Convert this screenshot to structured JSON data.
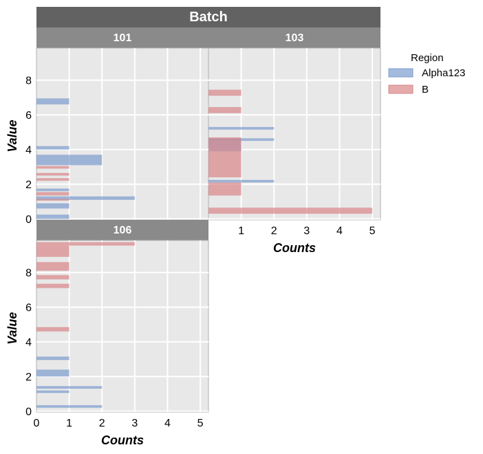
{
  "chart_data": {
    "type": "bar",
    "orientation": "horizontal",
    "facet_title": "Batch",
    "xlabel": "Counts",
    "ylabel": "Value",
    "xlim": [
      0,
      5.25
    ],
    "ylim": [
      -0.05,
      9.85
    ],
    "x_ticks": [
      0,
      1,
      2,
      3,
      4,
      5
    ],
    "y_ticks": [
      0,
      2,
      4,
      6,
      8
    ],
    "grid": true,
    "legend": {
      "title": "Region",
      "placement": "right",
      "entries": [
        {
          "name": "Alpha123",
          "color": "#7e9cce"
        },
        {
          "name": "B",
          "color": "#d98689"
        }
      ]
    },
    "panels": [
      {
        "label": "101",
        "bars": [
          {
            "region": "Alpha123",
            "y0": 6.6,
            "y1": 6.95,
            "count": 1
          },
          {
            "region": "Alpha123",
            "y0": 4.0,
            "y1": 4.2,
            "count": 1
          },
          {
            "region": "Alpha123",
            "y0": 3.1,
            "y1": 3.7,
            "count": 2
          },
          {
            "region": "B",
            "y0": 2.9,
            "y1": 3.05,
            "count": 1
          },
          {
            "region": "B",
            "y0": 2.5,
            "y1": 2.65,
            "count": 1
          },
          {
            "region": "B",
            "y0": 2.2,
            "y1": 2.35,
            "count": 1
          },
          {
            "region": "Alpha123",
            "y0": 1.6,
            "y1": 1.75,
            "count": 1
          },
          {
            "region": "B",
            "y0": 1.35,
            "y1": 1.55,
            "count": 1
          },
          {
            "region": "Alpha123",
            "y0": 1.1,
            "y1": 1.3,
            "count": 3
          },
          {
            "region": "B",
            "y0": 1.05,
            "y1": 1.15,
            "count": 1
          },
          {
            "region": "Alpha123",
            "y0": 0.6,
            "y1": 0.9,
            "count": 1
          },
          {
            "region": "Alpha123",
            "y0": 0.0,
            "y1": 0.25,
            "count": 1
          }
        ]
      },
      {
        "label": "103",
        "bars": [
          {
            "region": "B",
            "y0": 7.1,
            "y1": 7.45,
            "count": 1
          },
          {
            "region": "B",
            "y0": 6.1,
            "y1": 6.45,
            "count": 1
          },
          {
            "region": "Alpha123",
            "y0": 5.15,
            "y1": 5.3,
            "count": 2
          },
          {
            "region": "Alpha123",
            "y0": 4.5,
            "y1": 4.65,
            "count": 2
          },
          {
            "region": "Alpha123",
            "y0": 3.9,
            "y1": 4.6,
            "count": 1
          },
          {
            "region": "B",
            "y0": 2.4,
            "y1": 4.7,
            "count": 1
          },
          {
            "region": "Alpha123",
            "y0": 2.1,
            "y1": 2.25,
            "count": 2
          },
          {
            "region": "B",
            "y0": 1.35,
            "y1": 2.1,
            "count": 1
          },
          {
            "region": "B",
            "y0": 0.3,
            "y1": 0.65,
            "count": 5
          }
        ]
      },
      {
        "label": "106",
        "bars": [
          {
            "region": "B",
            "y0": 9.55,
            "y1": 9.75,
            "count": 3
          },
          {
            "region": "B",
            "y0": 8.9,
            "y1": 9.55,
            "count": 1
          },
          {
            "region": "B",
            "y0": 8.1,
            "y1": 8.6,
            "count": 1
          },
          {
            "region": "B",
            "y0": 7.6,
            "y1": 7.85,
            "count": 1
          },
          {
            "region": "B",
            "y0": 7.1,
            "y1": 7.35,
            "count": 1
          },
          {
            "region": "B",
            "y0": 4.6,
            "y1": 4.85,
            "count": 1
          },
          {
            "region": "Alpha123",
            "y0": 2.95,
            "y1": 3.15,
            "count": 1
          },
          {
            "region": "Alpha123",
            "y0": 2.0,
            "y1": 2.4,
            "count": 1
          },
          {
            "region": "Alpha123",
            "y0": 1.3,
            "y1": 1.45,
            "count": 2
          },
          {
            "region": "Alpha123",
            "y0": 1.05,
            "y1": 1.2,
            "count": 1
          },
          {
            "region": "Alpha123",
            "y0": 0.2,
            "y1": 0.35,
            "count": 2
          }
        ]
      }
    ]
  }
}
